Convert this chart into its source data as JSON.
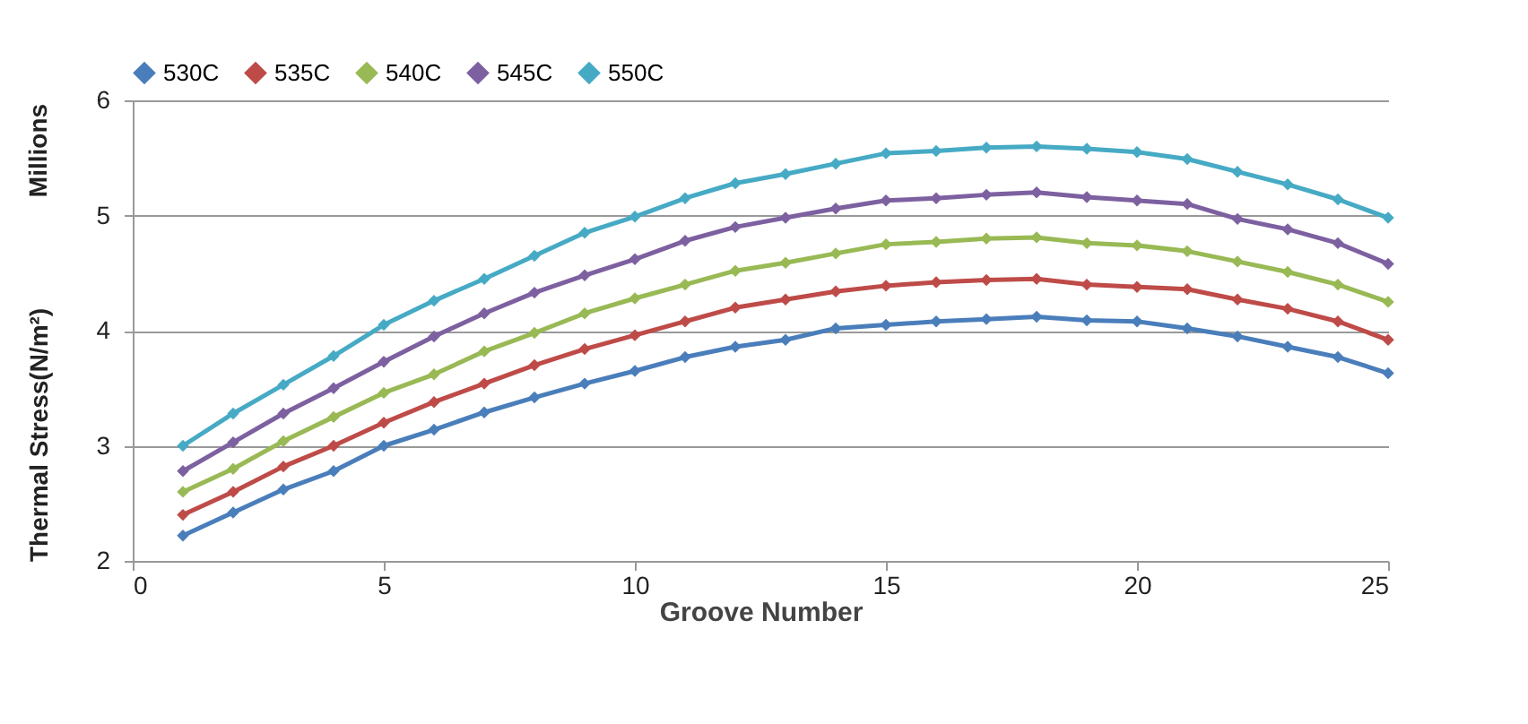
{
  "chart_data": {
    "type": "line",
    "xlabel": "Groove Number",
    "ylabel": "Thermal Stress(N/m²)",
    "annotations": [
      "Millions"
    ],
    "x": [
      1,
      2,
      3,
      4,
      5,
      6,
      7,
      8,
      9,
      10,
      11,
      12,
      13,
      14,
      15,
      16,
      17,
      18,
      19,
      20,
      21,
      22,
      23,
      24,
      25
    ],
    "xlim": [
      0,
      25
    ],
    "xticks": [
      0,
      5,
      10,
      15,
      20,
      25
    ],
    "ylim": [
      2,
      6
    ],
    "yticks": [
      2,
      3,
      4,
      5,
      6
    ],
    "grid": "y",
    "legend": "top",
    "marker": "diamond",
    "series": [
      {
        "name": "530C",
        "color": "#4a7ebb",
        "values": [
          2.22,
          2.42,
          2.62,
          2.78,
          3.0,
          3.14,
          3.29,
          3.42,
          3.54,
          3.65,
          3.77,
          3.86,
          3.92,
          4.02,
          4.05,
          4.08,
          4.1,
          4.12,
          4.09,
          4.08,
          4.02,
          3.95,
          3.86,
          3.77,
          3.63
        ]
      },
      {
        "name": "535C",
        "color": "#be4b48",
        "values": [
          2.4,
          2.6,
          2.82,
          3.0,
          3.2,
          3.38,
          3.54,
          3.7,
          3.84,
          3.96,
          4.08,
          4.2,
          4.27,
          4.34,
          4.39,
          4.42,
          4.44,
          4.45,
          4.4,
          4.38,
          4.36,
          4.27,
          4.19,
          4.08,
          3.92
        ]
      },
      {
        "name": "540C",
        "color": "#98b954",
        "values": [
          2.6,
          2.8,
          3.04,
          3.25,
          3.46,
          3.62,
          3.82,
          3.98,
          4.15,
          4.28,
          4.4,
          4.52,
          4.59,
          4.67,
          4.75,
          4.77,
          4.8,
          4.81,
          4.76,
          4.74,
          4.69,
          4.6,
          4.51,
          4.4,
          4.25
        ]
      },
      {
        "name": "545C",
        "color": "#7d60a0",
        "values": [
          2.78,
          3.03,
          3.28,
          3.5,
          3.73,
          3.95,
          4.15,
          4.33,
          4.48,
          4.62,
          4.78,
          4.9,
          4.98,
          5.06,
          5.13,
          5.15,
          5.18,
          5.2,
          5.16,
          5.13,
          5.1,
          4.97,
          4.88,
          4.76,
          4.58
        ]
      },
      {
        "name": "550C",
        "color": "#46aac5",
        "values": [
          3.0,
          3.28,
          3.53,
          3.78,
          4.05,
          4.26,
          4.45,
          4.65,
          4.85,
          4.99,
          5.15,
          5.28,
          5.36,
          5.45,
          5.54,
          5.56,
          5.59,
          5.6,
          5.58,
          5.55,
          5.49,
          5.38,
          5.27,
          5.14,
          4.98
        ]
      }
    ]
  }
}
